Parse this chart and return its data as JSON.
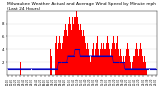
{
  "title": "Milwaukee Weather Actual and Average Wind Speed by Minute mph (Last 24 Hours)",
  "title_fontsize": 3.2,
  "background_color": "#ffffff",
  "plot_bg_color": "#ffffff",
  "bar_color": "#ff0000",
  "dot_color": "#0000bb",
  "line_color": "#0000cc",
  "ylim": [
    0,
    10
  ],
  "yticks": [
    2,
    4,
    6,
    8
  ],
  "ytick_labels": [
    "2",
    "4",
    "6",
    "8"
  ],
  "grid_color": "#dddddd",
  "n_points": 144,
  "actual_wind": [
    0,
    0,
    0,
    0,
    0,
    0,
    0,
    0,
    0,
    0,
    0,
    0,
    2,
    0,
    0,
    0,
    0,
    0,
    0,
    0,
    0,
    0,
    0,
    0,
    0,
    0,
    0,
    0,
    0,
    0,
    0,
    0,
    0,
    0,
    0,
    0,
    0,
    0,
    0,
    0,
    0,
    4,
    3,
    0,
    0,
    0,
    5,
    6,
    4,
    5,
    6,
    5,
    4,
    5,
    6,
    7,
    8,
    7,
    6,
    8,
    9,
    8,
    7,
    9,
    8,
    9,
    10,
    9,
    8,
    7,
    8,
    7,
    6,
    7,
    6,
    5,
    4,
    5,
    4,
    3,
    2,
    3,
    4,
    5,
    3,
    4,
    5,
    6,
    4,
    3,
    4,
    5,
    4,
    5,
    4,
    5,
    6,
    5,
    4,
    3,
    4,
    5,
    6,
    5,
    4,
    5,
    6,
    4,
    3,
    4,
    3,
    2,
    3,
    2,
    3,
    4,
    5,
    4,
    3,
    2,
    1,
    2,
    3,
    4,
    5,
    4,
    3,
    4,
    5,
    4,
    3,
    2,
    3,
    2,
    1,
    0,
    0,
    0,
    0,
    0,
    0,
    0,
    0,
    0
  ],
  "avg_wind": [
    1,
    1,
    1,
    1,
    1,
    1,
    1,
    1,
    1,
    1,
    1,
    1,
    1,
    1,
    1,
    1,
    1,
    1,
    1,
    1,
    1,
    1,
    1,
    1,
    1,
    1,
    1,
    1,
    1,
    1,
    1,
    1,
    1,
    1,
    1,
    1,
    1,
    1,
    1,
    1,
    1,
    1,
    1,
    1,
    1,
    1,
    1,
    1,
    1,
    2,
    2,
    2,
    2,
    2,
    2,
    2,
    2,
    2,
    3,
    3,
    3,
    3,
    3,
    3,
    3,
    4,
    4,
    4,
    4,
    4,
    3,
    3,
    3,
    3,
    3,
    3,
    3,
    3,
    3,
    3,
    3,
    3,
    3,
    3,
    3,
    3,
    3,
    3,
    3,
    3,
    3,
    3,
    3,
    3,
    3,
    3,
    3,
    3,
    3,
    3,
    3,
    3,
    2,
    2,
    2,
    2,
    2,
    2,
    2,
    2,
    2,
    2,
    2,
    1,
    1,
    1,
    1,
    1,
    1,
    1,
    1,
    1,
    1,
    1,
    1,
    1,
    1,
    1,
    1,
    1,
    1,
    1,
    1,
    1,
    1,
    1,
    1,
    1,
    1,
    1,
    1,
    1,
    1,
    1
  ],
  "n_xticks": 37,
  "figsize": [
    1.6,
    0.87
  ],
  "dpi": 100
}
